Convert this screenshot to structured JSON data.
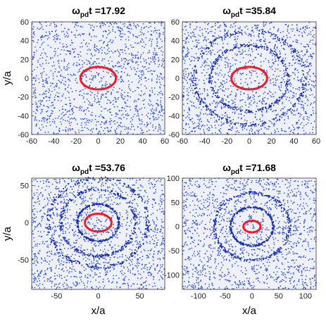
{
  "chart_data": [
    {
      "type": "scatter",
      "title": "t =17.92",
      "title_symbol": "ω",
      "title_subscript": "pd",
      "xlim": [
        -60,
        60
      ],
      "ylim": [
        -60,
        60
      ],
      "xticks": [
        -60,
        -40,
        -20,
        0,
        20,
        40,
        60
      ],
      "yticks": [
        60,
        40,
        20,
        0,
        -20,
        -40,
        -60
      ],
      "xlabel": "",
      "ylabel": "y/a",
      "point_color": "#1f3fd1",
      "ring_color": "#ee1c25",
      "rings": [],
      "red_ellipse": {
        "cx": 0,
        "cy": 0,
        "rx": 16,
        "ry": 12
      },
      "scatter_hint": "dense uniform dots"
    },
    {
      "type": "scatter",
      "title": "t =35.84",
      "title_symbol": "ω",
      "title_subscript": "pd",
      "xlim": [
        -60,
        60
      ],
      "ylim": [
        -60,
        60
      ],
      "xticks": [
        -60,
        -40,
        -20,
        0,
        20,
        40,
        60
      ],
      "yticks": [
        60,
        40,
        20,
        0,
        -20,
        -40,
        -60
      ],
      "xlabel": "",
      "ylabel": "",
      "point_color": "#1f3fd1",
      "ring_color": "#ee1c25",
      "rings": [
        35,
        50
      ],
      "red_ellipse": {
        "cx": 0,
        "cy": 0,
        "rx": 16,
        "ry": 12
      },
      "scatter_hint": "dense with faint rings"
    },
    {
      "type": "scatter",
      "title": "t =53.76",
      "title_symbol": "ω",
      "title_subscript": "pd",
      "xlim": [
        -80,
        80
      ],
      "ylim": [
        -90,
        60
      ],
      "xticks": [
        -50,
        0,
        50
      ],
      "yticks": [
        50,
        0,
        -50
      ],
      "xlabel": "x/a",
      "ylabel": "y/a",
      "point_color": "#1f3fd1",
      "ring_color": "#ee1c25",
      "rings": [
        25,
        45,
        60
      ],
      "red_ellipse": {
        "cx": 0,
        "cy": 0,
        "rx": 16,
        "ry": 12
      },
      "scatter_hint": "dense with rings"
    },
    {
      "type": "scatter",
      "title": "t =71.68",
      "title_symbol": "ω",
      "title_subscript": "pd",
      "xlim": [
        -130,
        120
      ],
      "ylim": [
        -130,
        100
      ],
      "xticks": [
        -100,
        -50,
        0,
        50,
        100
      ],
      "yticks": [
        100,
        50,
        0,
        -50,
        -100
      ],
      "xlabel": "x/a",
      "ylabel": "",
      "point_color": "#1f3fd1",
      "ring_color": "#ee1c25",
      "rings": [
        40,
        70
      ],
      "red_ellipse": {
        "cx": 0,
        "cy": 0,
        "rx": 16,
        "ry": 12
      },
      "scatter_hint": "very dense"
    }
  ]
}
